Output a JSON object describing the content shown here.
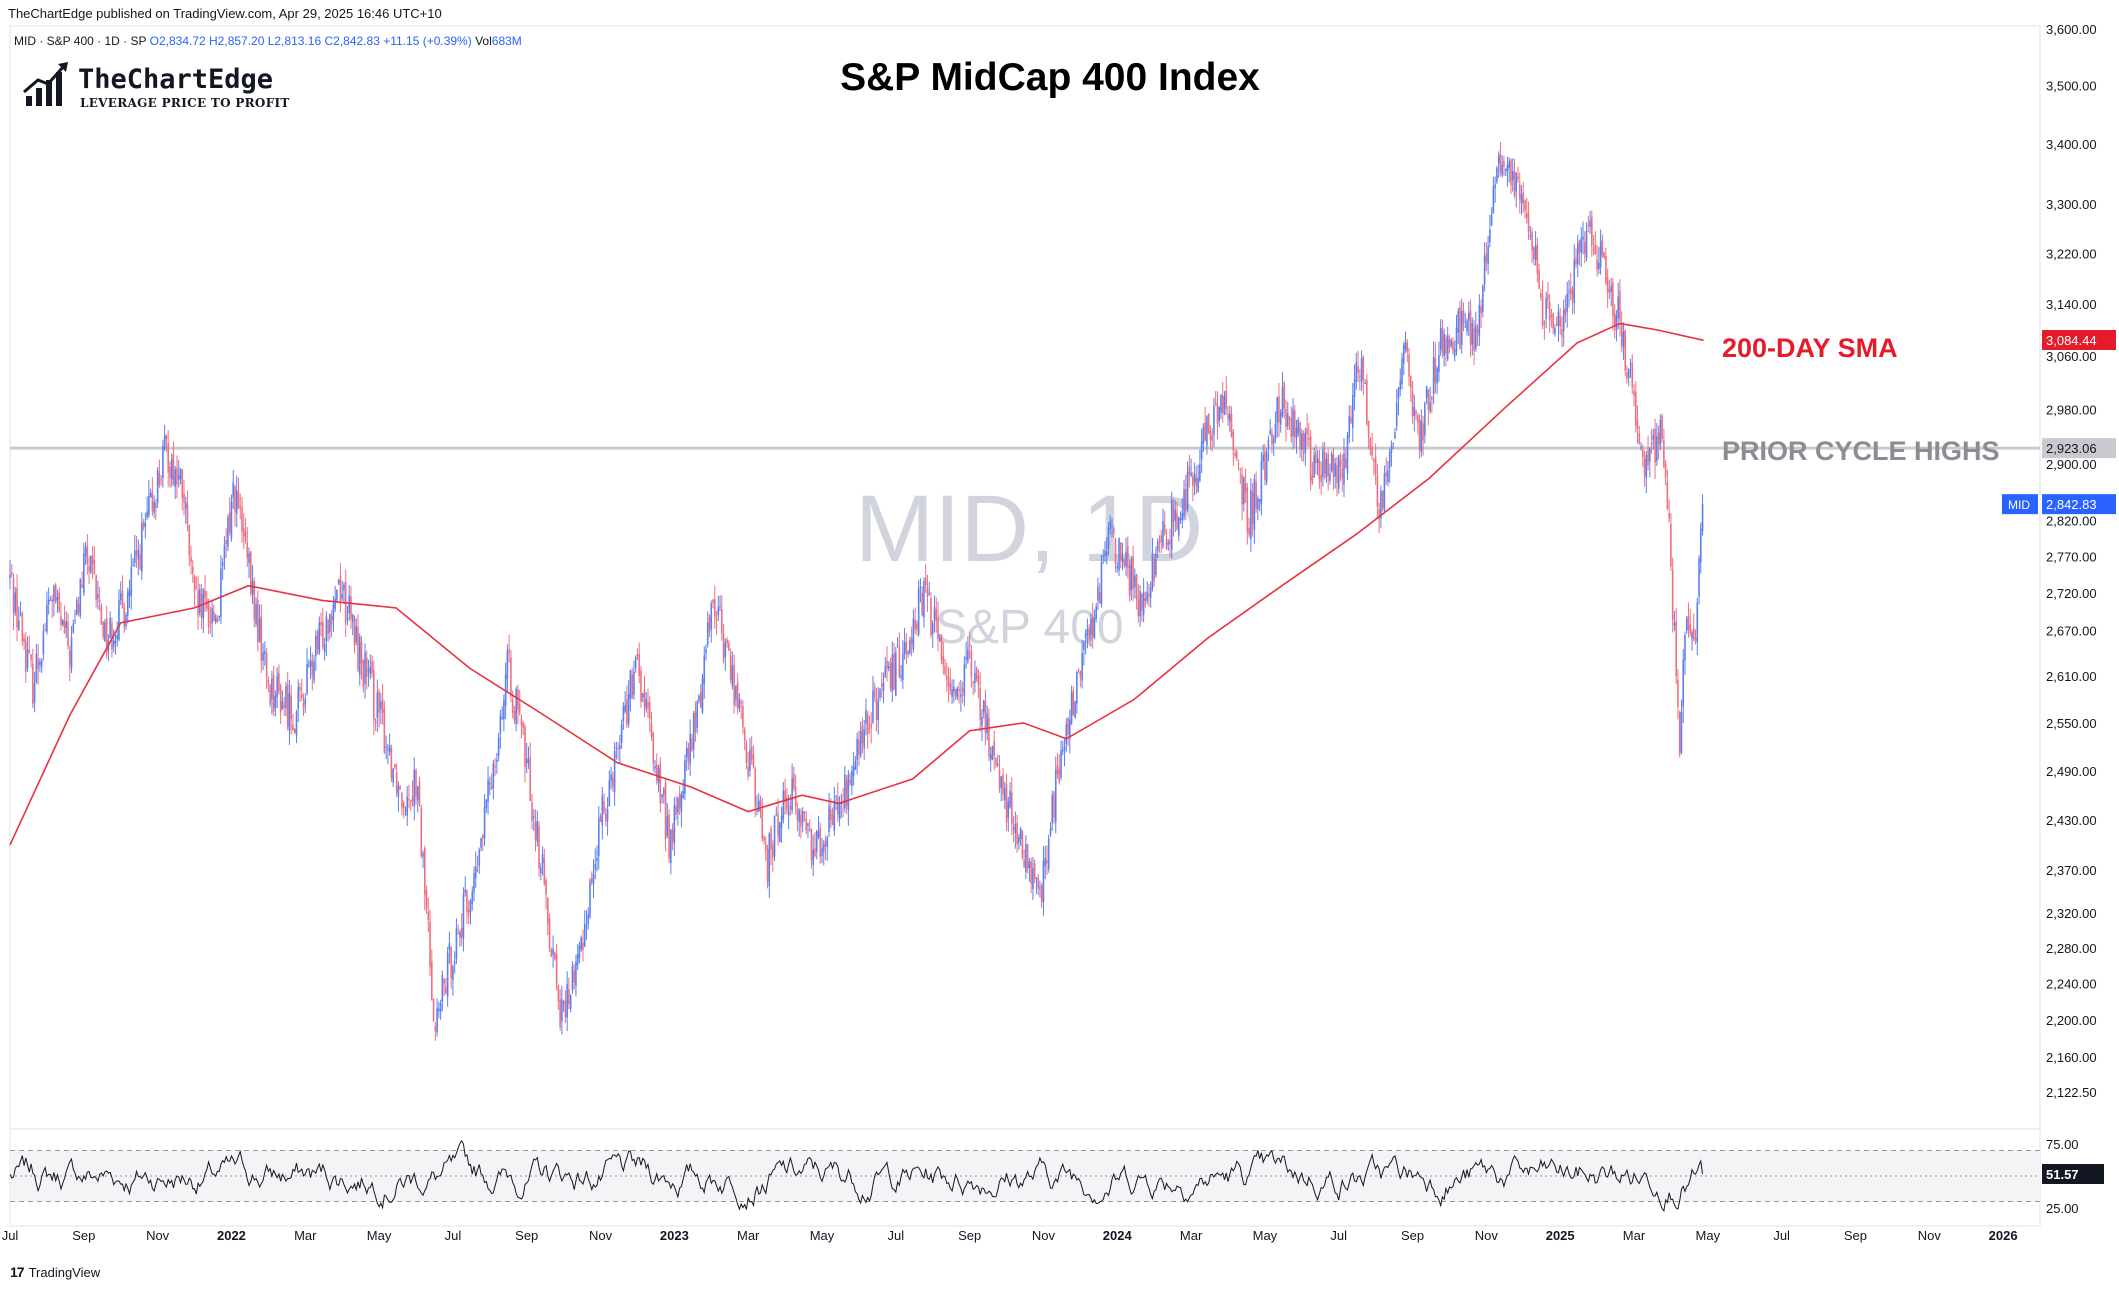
{
  "header": {
    "published": "TheChartEdge published on TradingView.com, Apr 29, 2025 16:46 UTC+10",
    "symbol_line": "MID · S&P 400 · 1D · SP",
    "open": "O2,834.72",
    "high": "H2,857.20",
    "low": "L2,813.16",
    "close": "C2,842.83",
    "change": "+11.15 (+0.39%)",
    "volume_label": "Vol",
    "volume": "683M"
  },
  "logo": {
    "name": "TheChartEdge",
    "tagline": "LEVERAGE PRICE TO PROFIT"
  },
  "watermark": {
    "symbol": "MID, 1D",
    "name": "S&P 400"
  },
  "annotations": {
    "sma": "200-DAY SMA",
    "prior_highs": "PRIOR CYCLE HIGHS"
  },
  "footer": {
    "brand": "TradingView",
    "logo_glyph": "17"
  },
  "colors": {
    "up": "#5b7ff0",
    "down": "#ef6f80",
    "sma": "#e8323f",
    "resistance": "#c8cacf",
    "grid_text": "#131722",
    "rsi": "#131722",
    "mid_badge": "#2962ff",
    "sma_badge": "#e51b2c"
  },
  "chart_data": [
    {
      "type": "candlestick",
      "title": "S&P MidCap 400 Index",
      "symbol": "MID",
      "interval": "1D",
      "y_ticks": [
        "3,600.00",
        "3,500.00",
        "3,400.00",
        "3,300.00",
        "3,220.00",
        "3,140.00",
        "3,060.00",
        "2,980.00",
        "2,900.00",
        "2,820.00",
        "2,770.00",
        "2,720.00",
        "2,670.00",
        "2,610.00",
        "2,550.00",
        "2,490.00",
        "2,430.00",
        "2,370.00",
        "2,320.00",
        "2,280.00",
        "2,240.00",
        "2,200.00",
        "2,160.00",
        "2,122.50"
      ],
      "y_tick_values": [
        3600,
        3500,
        3400,
        3300,
        3220,
        3140,
        3060,
        2980,
        2900,
        2820,
        2770,
        2720,
        2670,
        2610,
        2550,
        2490,
        2430,
        2370,
        2320,
        2280,
        2240,
        2200,
        2160,
        2122.5
      ],
      "x_ticks": [
        "Jul",
        "Sep",
        "Nov",
        "2022",
        "Mar",
        "May",
        "Jul",
        "Sep",
        "Nov",
        "2023",
        "Mar",
        "May",
        "Jul",
        "Sep",
        "Nov",
        "2024",
        "Mar",
        "May",
        "Jul",
        "Sep",
        "Nov",
        "2025",
        "Mar",
        "May",
        "Jul",
        "Sep",
        "Nov",
        "2026"
      ],
      "x_tick_bold": [
        false,
        false,
        false,
        true,
        false,
        false,
        false,
        false,
        false,
        true,
        false,
        false,
        false,
        false,
        false,
        true,
        false,
        false,
        false,
        false,
        false,
        true,
        false,
        false,
        false,
        false,
        false,
        true
      ],
      "x_range": [
        "2021-07",
        "2026-02"
      ],
      "log_scale": true,
      "price_path": [
        [
          "2021-07-01",
          2740
        ],
        [
          "2021-07-20",
          2600
        ],
        [
          "2021-08-05",
          2720
        ],
        [
          "2021-08-20",
          2640
        ],
        [
          "2021-09-03",
          2770
        ],
        [
          "2021-09-20",
          2660
        ],
        [
          "2021-10-04",
          2700
        ],
        [
          "2021-10-20",
          2800
        ],
        [
          "2021-11-08",
          2920
        ],
        [
          "2021-11-22",
          2860
        ],
        [
          "2021-12-01",
          2700
        ],
        [
          "2021-12-20",
          2690
        ],
        [
          "2022-01-03",
          2870
        ],
        [
          "2022-01-20",
          2700
        ],
        [
          "2022-02-01",
          2600
        ],
        [
          "2022-02-24",
          2560
        ],
        [
          "2022-03-10",
          2640
        ],
        [
          "2022-03-29",
          2740
        ],
        [
          "2022-04-15",
          2640
        ],
        [
          "2022-05-01",
          2560
        ],
        [
          "2022-05-20",
          2460
        ],
        [
          "2022-06-01",
          2480
        ],
        [
          "2022-06-17",
          2190
        ],
        [
          "2022-07-01",
          2280
        ],
        [
          "2022-07-20",
          2360
        ],
        [
          "2022-08-16",
          2620
        ],
        [
          "2022-09-01",
          2500
        ],
        [
          "2022-09-30",
          2200
        ],
        [
          "2022-10-14",
          2270
        ],
        [
          "2022-10-31",
          2420
        ],
        [
          "2022-11-20",
          2560
        ],
        [
          "2022-12-01",
          2620
        ],
        [
          "2022-12-28",
          2400
        ],
        [
          "2023-01-20",
          2560
        ],
        [
          "2023-02-02",
          2720
        ],
        [
          "2023-02-20",
          2600
        ],
        [
          "2023-03-17",
          2380
        ],
        [
          "2023-04-03",
          2470
        ],
        [
          "2023-04-25",
          2400
        ],
        [
          "2023-05-20",
          2460
        ],
        [
          "2023-06-10",
          2560
        ],
        [
          "2023-07-01",
          2620
        ],
        [
          "2023-07-25",
          2720
        ],
        [
          "2023-08-18",
          2590
        ],
        [
          "2023-09-01",
          2620
        ],
        [
          "2023-09-28",
          2470
        ],
        [
          "2023-10-27",
          2330
        ],
        [
          "2023-11-15",
          2500
        ],
        [
          "2023-12-01",
          2620
        ],
        [
          "2023-12-27",
          2800
        ],
        [
          "2024-01-20",
          2710
        ],
        [
          "2024-02-10",
          2800
        ],
        [
          "2024-03-01",
          2880
        ],
        [
          "2024-03-28",
          3000
        ],
        [
          "2024-04-18",
          2820
        ],
        [
          "2024-05-15",
          3000
        ],
        [
          "2024-06-10",
          2900
        ],
        [
          "2024-07-05",
          2880
        ],
        [
          "2024-07-16",
          3080
        ],
        [
          "2024-08-05",
          2830
        ],
        [
          "2024-08-25",
          3060
        ],
        [
          "2024-09-06",
          2930
        ],
        [
          "2024-09-25",
          3080
        ],
        [
          "2024-10-10",
          3100
        ],
        [
          "2024-10-25",
          3100
        ],
        [
          "2024-11-11",
          3380
        ],
        [
          "2024-11-20",
          3340
        ],
        [
          "2024-12-05",
          3280
        ],
        [
          "2024-12-18",
          3120
        ],
        [
          "2025-01-02",
          3100
        ],
        [
          "2025-01-22",
          3260
        ],
        [
          "2025-02-05",
          3200
        ],
        [
          "2025-02-20",
          3110
        ],
        [
          "2025-03-10",
          2900
        ],
        [
          "2025-03-25",
          2950
        ],
        [
          "2025-04-08",
          2530
        ],
        [
          "2025-04-15",
          2700
        ],
        [
          "2025-04-22",
          2680
        ],
        [
          "2025-04-28",
          2843
        ]
      ],
      "sma_200": [
        [
          "2021-07-01",
          2400
        ],
        [
          "2021-08-20",
          2560
        ],
        [
          "2021-10-01",
          2680
        ],
        [
          "2021-12-01",
          2700
        ],
        [
          "2022-01-15",
          2730
        ],
        [
          "2022-03-15",
          2710
        ],
        [
          "2022-05-15",
          2700
        ],
        [
          "2022-07-15",
          2620
        ],
        [
          "2022-09-15",
          2560
        ],
        [
          "2022-11-15",
          2500
        ],
        [
          "2023-01-15",
          2470
        ],
        [
          "2023-03-01",
          2440
        ],
        [
          "2023-04-15",
          2460
        ],
        [
          "2023-05-15",
          2450
        ],
        [
          "2023-07-15",
          2480
        ],
        [
          "2023-09-01",
          2540
        ],
        [
          "2023-10-15",
          2550
        ],
        [
          "2023-11-20",
          2530
        ],
        [
          "2024-01-15",
          2580
        ],
        [
          "2024-03-15",
          2660
        ],
        [
          "2024-05-15",
          2730
        ],
        [
          "2024-07-15",
          2800
        ],
        [
          "2024-09-15",
          2880
        ],
        [
          "2024-11-15",
          2980
        ],
        [
          "2025-01-15",
          3080
        ],
        [
          "2025-02-20",
          3110
        ],
        [
          "2025-03-20",
          3100
        ],
        [
          "2025-04-28",
          3084
        ]
      ],
      "resistance_level": 2923.06,
      "price_badges": [
        {
          "label": "3,084.44",
          "value": 3084.44,
          "color_key": "sma_badge"
        },
        {
          "label": "2,923.06",
          "value": 2923.06,
          "color_key": "resistance"
        },
        {
          "label": "2,842.83",
          "value": 2842.83,
          "color_key": "mid_badge",
          "tag": "MID"
        }
      ],
      "last_close": 2842.83
    },
    {
      "type": "line",
      "name": "RSI",
      "y_ticks": [
        "75.00",
        "25.00"
      ],
      "y_tick_values": [
        75,
        25
      ],
      "band_upper": 70,
      "band_lower": 30,
      "midline": 50,
      "last_value": 51.57,
      "last_label": "51.57"
    }
  ]
}
